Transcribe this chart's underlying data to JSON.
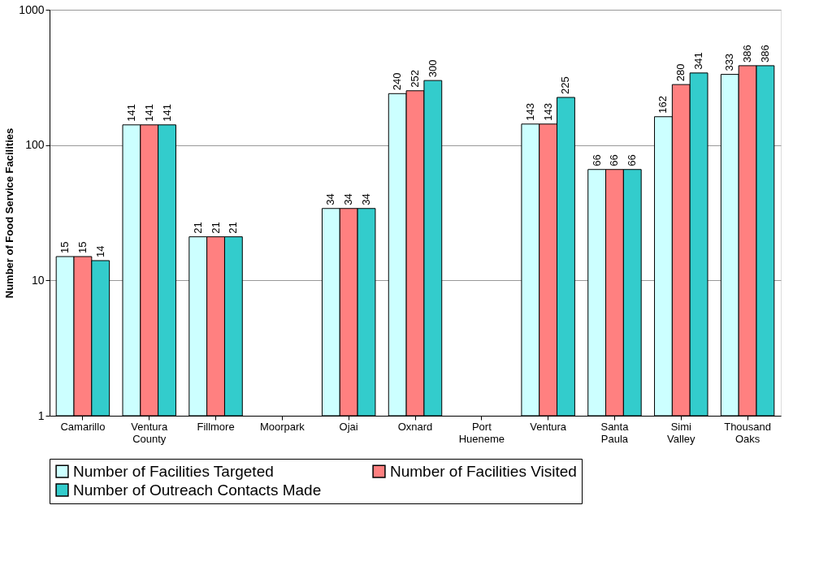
{
  "chart_data": {
    "type": "bar",
    "ylabel": "Number of Food Service Facilities",
    "categories": [
      "Camarillo",
      "Ventura County",
      "Fillmore",
      "Moorpark",
      "Ojai",
      "Oxnard",
      "Port Hueneme",
      "Ventura",
      "Santa Paula",
      "Simi Valley",
      "Thousand Oaks"
    ],
    "series": [
      {
        "name": "Number of Facilities Targeted",
        "color": "#ccffff",
        "values": [
          15,
          141,
          21,
          null,
          34,
          240,
          null,
          143,
          66,
          162,
          333
        ]
      },
      {
        "name": "Number of Facilities Visited",
        "color": "#ff8080",
        "values": [
          15,
          141,
          21,
          null,
          34,
          252,
          null,
          143,
          66,
          280,
          386
        ]
      },
      {
        "name": "Number of Outreach Contacts Made",
        "color": "#33cccc",
        "values": [
          14,
          141,
          21,
          null,
          34,
          300,
          null,
          225,
          66,
          341,
          386
        ]
      }
    ],
    "log": true,
    "ylim": [
      1,
      1000
    ],
    "yticks": [
      1,
      10,
      100,
      1000
    ],
    "grid": "y",
    "legend": "bottom",
    "data_labels": true
  }
}
